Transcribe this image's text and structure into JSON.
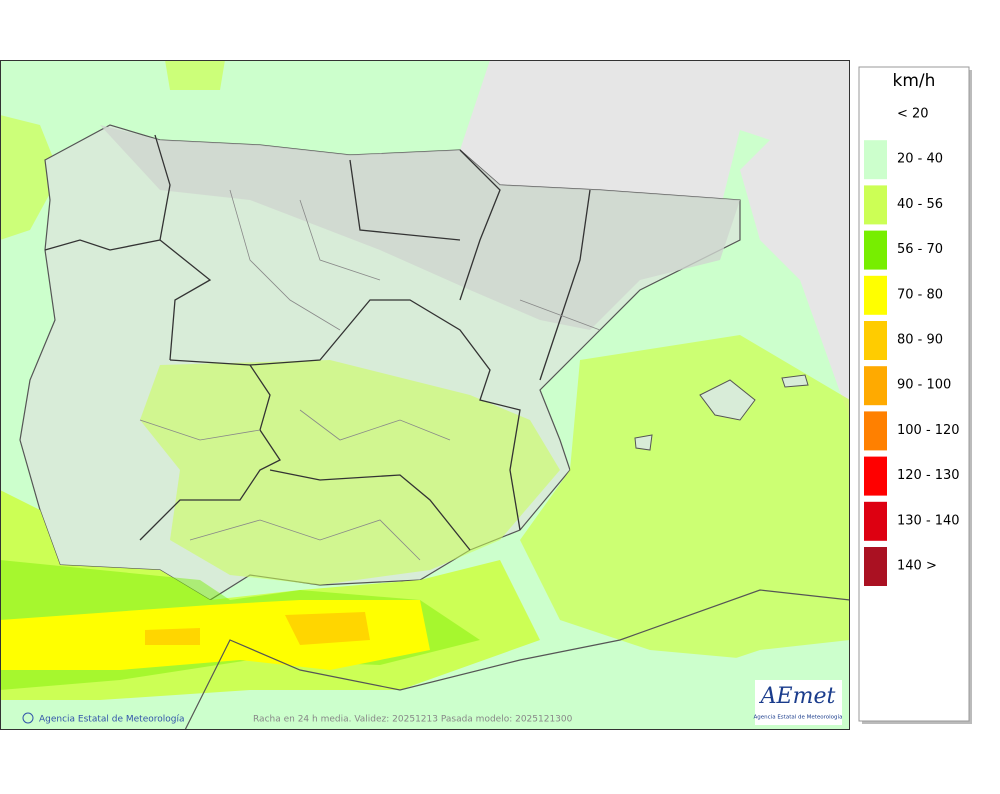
{
  "legend": {
    "title": "km/h",
    "items": [
      {
        "label": "< 20"
      },
      {
        "label": "20 - 40",
        "color": "#ccffcc"
      },
      {
        "label": "40 - 56",
        "color": "#ccff55"
      },
      {
        "label": "56 - 70",
        "color": "#77ee00"
      },
      {
        "label": "70 - 80",
        "color": "#ffff00"
      },
      {
        "label": "80 - 90",
        "color": "#ffcc00"
      },
      {
        "label": "90 - 100",
        "color": "#ffaa00"
      },
      {
        "label": "100 - 120",
        "color": "#ff8000"
      },
      {
        "label": "120 - 130",
        "color": "#ff0000"
      },
      {
        "label": "130 - 140",
        "color": "#dd0011"
      },
      {
        "label": "140 >",
        "color": "#aa1122"
      }
    ]
  },
  "footer": {
    "credit": "Agencia Estatal de Meteorología",
    "caption": "Racha en 24 h media. Validez: 20251213 Pasada modelo: 2025121300"
  },
  "logo": {
    "name": "AEmet",
    "subtitle": "Agencia Estatal de Meteorología"
  }
}
